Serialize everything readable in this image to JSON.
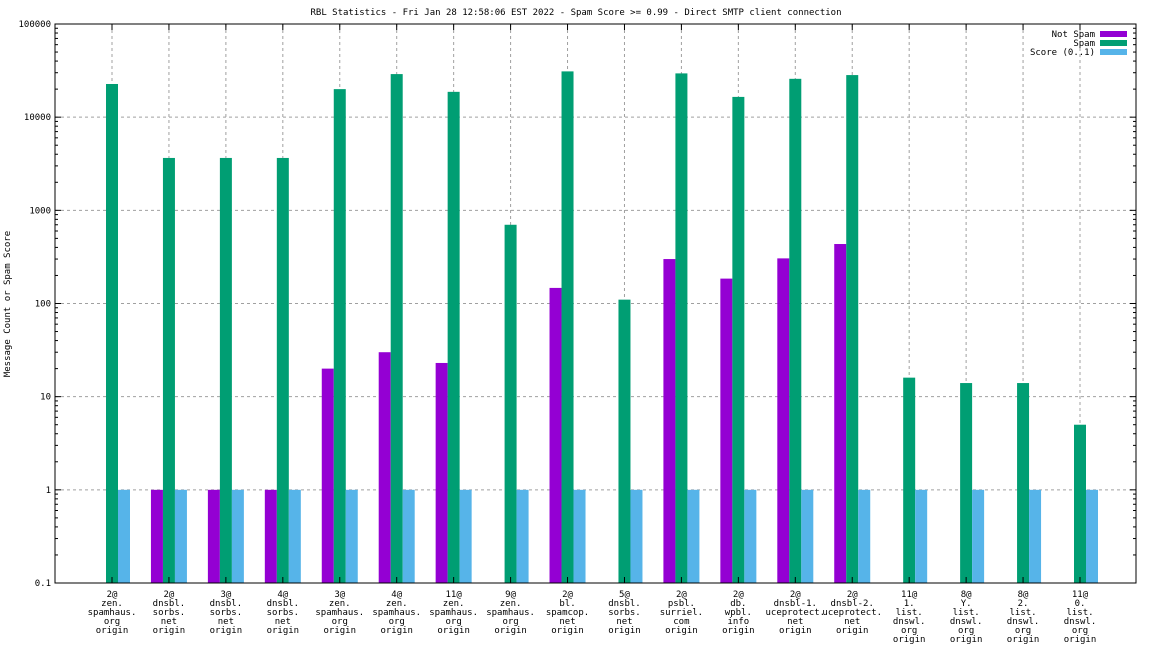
{
  "chart_data": {
    "type": "bar",
    "title": "RBL Statistics - Fri Jan 28 12:58:06 EST 2022 - Spam Score >= 0.99 - Direct SMTP client connection",
    "xlabel": "",
    "ylabel": "Message Count or Spam Score",
    "yscale": "log",
    "ylim": [
      0.1,
      100000
    ],
    "yticks": [
      "0.1",
      "1",
      "10",
      "100",
      "1000",
      "10000",
      "100000"
    ],
    "grid": true,
    "legend_position": "top-right",
    "categories": [
      [
        "2@",
        "zen.",
        "spamhaus.",
        "org",
        "origin"
      ],
      [
        "2@",
        "dnsbl.",
        "sorbs.",
        "net",
        "origin"
      ],
      [
        "3@",
        "dnsbl.",
        "sorbs.",
        "net",
        "origin"
      ],
      [
        "4@",
        "dnsbl.",
        "sorbs.",
        "net",
        "origin"
      ],
      [
        "3@",
        "zen.",
        "spamhaus.",
        "org",
        "origin"
      ],
      [
        "4@",
        "zen.",
        "spamhaus.",
        "org",
        "origin"
      ],
      [
        "11@",
        "zen.",
        "spamhaus.",
        "org",
        "origin"
      ],
      [
        "9@",
        "zen.",
        "spamhaus.",
        "org",
        "origin"
      ],
      [
        "2@",
        "bl.",
        "spamcop.",
        "net",
        "origin"
      ],
      [
        "5@",
        "dnsbl.",
        "sorbs.",
        "net",
        "origin"
      ],
      [
        "2@",
        "psbl.",
        "surriel.",
        "com",
        "origin"
      ],
      [
        "2@",
        "db.",
        "wpbl.",
        "info",
        "origin"
      ],
      [
        "2@",
        "dnsbl-1.",
        "uceprotect.",
        "net",
        "origin"
      ],
      [
        "2@",
        "dnsbl-2.",
        "uceprotect.",
        "net",
        "origin"
      ],
      [
        "11@",
        "1.",
        "list.",
        "dnswl.",
        "org",
        "origin"
      ],
      [
        "8@",
        "Y.",
        "list.",
        "dnswl.",
        "org",
        "origin"
      ],
      [
        "8@",
        "2.",
        "list.",
        "dnswl.",
        "org",
        "origin"
      ],
      [
        "11@",
        "0.",
        "list.",
        "dnswl.",
        "org",
        "origin"
      ]
    ],
    "series": [
      {
        "name": "Not Spam",
        "color": "#9400d3",
        "values": [
          0,
          1,
          1,
          1,
          20,
          30,
          23,
          0,
          147,
          0,
          300,
          185,
          305,
          435,
          0,
          0,
          0,
          0
        ]
      },
      {
        "name": "Spam",
        "color": "#009e73",
        "values": [
          22700,
          3650,
          3650,
          3650,
          20000,
          29000,
          18700,
          700,
          31000,
          110,
          29500,
          16500,
          25800,
          28300,
          16,
          14,
          14,
          5
        ]
      },
      {
        "name": "Score (0..1)",
        "color": "#56b4e9",
        "values": [
          1,
          1,
          1,
          1,
          1,
          1,
          1,
          1,
          1,
          1,
          1,
          1,
          1,
          1,
          1,
          1,
          1,
          1
        ]
      }
    ]
  }
}
